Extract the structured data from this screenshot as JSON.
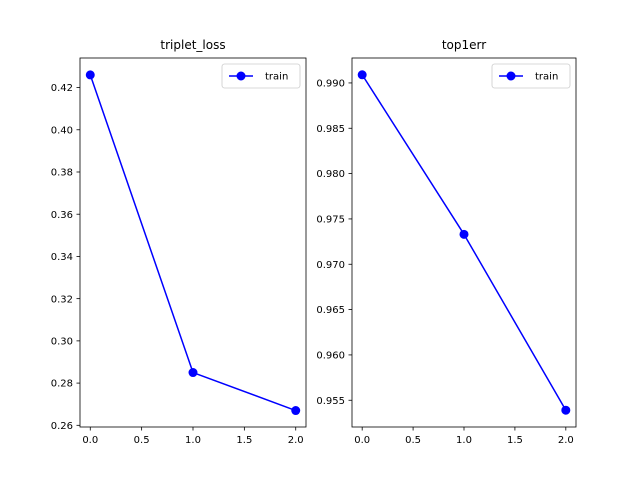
{
  "chart_data": [
    {
      "type": "line",
      "title": "triplet_loss",
      "x": [
        0.0,
        1.0,
        2.0
      ],
      "series": [
        {
          "name": "train",
          "values": [
            0.426,
            0.285,
            0.267
          ],
          "color": "#0000ff",
          "marker": "circle"
        }
      ],
      "xlim": [
        -0.1,
        2.1
      ],
      "ylim": [
        0.2592,
        0.434
      ],
      "xticks": [
        0.0,
        0.5,
        1.0,
        1.5,
        2.0
      ],
      "xtick_labels": [
        "0.0",
        "0.5",
        "1.0",
        "1.5",
        "2.0"
      ],
      "yticks": [
        0.26,
        0.28,
        0.3,
        0.32,
        0.34,
        0.36,
        0.38,
        0.4,
        0.42
      ],
      "ytick_labels": [
        "0.26",
        "0.28",
        "0.30",
        "0.32",
        "0.34",
        "0.36",
        "0.38",
        "0.40",
        "0.42"
      ],
      "legend": "top-right",
      "grid": false
    },
    {
      "type": "line",
      "title": "top1err",
      "x": [
        0.0,
        1.0,
        2.0
      ],
      "series": [
        {
          "name": "train",
          "values": [
            0.9909,
            0.9733,
            0.9539
          ],
          "color": "#0000ff",
          "marker": "circle"
        }
      ],
      "xlim": [
        -0.1,
        2.1
      ],
      "ylim": [
        0.95205,
        0.99275
      ],
      "xticks": [
        0.0,
        0.5,
        1.0,
        1.5,
        2.0
      ],
      "xtick_labels": [
        "0.0",
        "0.5",
        "1.0",
        "1.5",
        "2.0"
      ],
      "yticks": [
        0.955,
        0.96,
        0.965,
        0.97,
        0.975,
        0.98,
        0.985,
        0.99
      ],
      "ytick_labels": [
        "0.955",
        "0.960",
        "0.965",
        "0.970",
        "0.975",
        "0.980",
        "0.985",
        "0.990"
      ],
      "legend": "top-right",
      "grid": false
    }
  ]
}
